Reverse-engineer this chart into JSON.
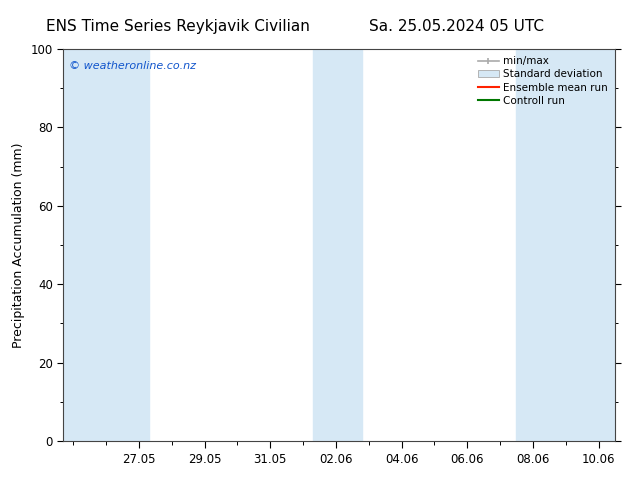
{
  "title_left": "ENS Time Series Reykjavik Civilian",
  "title_right": "Sa. 25.05.2024 05 UTC",
  "ylabel": "Precipitation Accumulation (mm)",
  "watermark": "© weatheronline.co.nz",
  "ylim": [
    0,
    100
  ],
  "yticks": [
    0,
    20,
    40,
    60,
    80,
    100
  ],
  "xtick_labels": [
    "27.05",
    "29.05",
    "31.05",
    "02.06",
    "04.06",
    "06.06",
    "08.06",
    "10.06"
  ],
  "band_color": "#d6e8f5",
  "background_color": "#ffffff",
  "legend_entries": [
    "min/max",
    "Standard deviation",
    "Ensemble mean run",
    "Controll run"
  ],
  "title_fontsize": 11,
  "axis_fontsize": 9,
  "tick_fontsize": 8.5,
  "legend_fontsize": 7.5
}
